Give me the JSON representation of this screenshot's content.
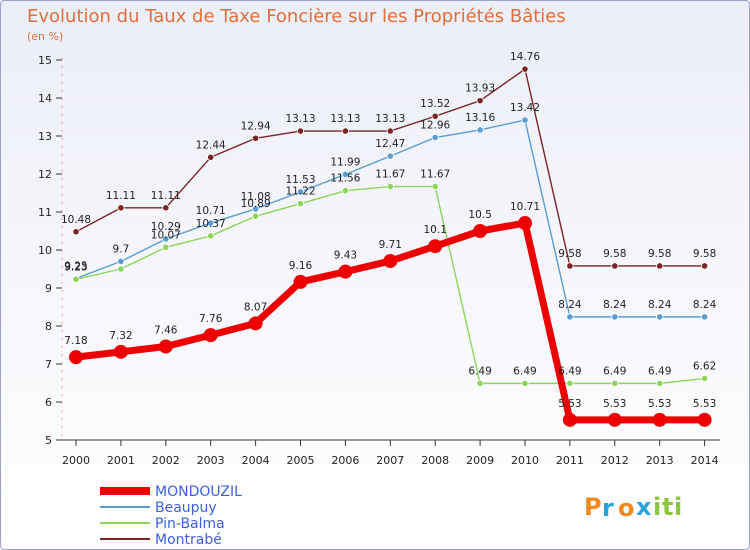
{
  "chart_data": {
    "type": "line",
    "title": "Evolution du Taux de Taxe Foncière sur les Propriétés Bâties",
    "subtitle": "(en %)",
    "xlabel": "",
    "ylabel": "",
    "categories": [
      "2000",
      "2001",
      "2002",
      "2003",
      "2004",
      "2005",
      "2006",
      "2007",
      "2008",
      "2009",
      "2010",
      "2011",
      "2012",
      "2013",
      "2014"
    ],
    "ylim": [
      5,
      15
    ],
    "yticks": [
      "5",
      "6",
      "7",
      "8",
      "9",
      "10",
      "11",
      "12",
      "13",
      "14",
      "15"
    ],
    "grid": false,
    "legend_position": "bottom-left",
    "series": [
      {
        "name": "Montrabé",
        "color": "#7a2424",
        "values": [
          10.48,
          11.11,
          11.11,
          12.44,
          12.94,
          13.13,
          13.13,
          13.13,
          13.52,
          13.93,
          14.76,
          9.58,
          9.58,
          9.58,
          9.58
        ],
        "labels": [
          "10.48",
          "11.11",
          "11.11",
          "12.44",
          "12.94",
          "13.13",
          "13.13",
          "13.13",
          "13.52",
          "13.93",
          "14.76",
          "9.58",
          "9.58",
          "9.58",
          "9.58"
        ]
      },
      {
        "name": "Beaupuy",
        "color": "#5a9bd1",
        "values": [
          9.25,
          9.7,
          10.29,
          10.71,
          11.08,
          11.53,
          11.99,
          12.47,
          12.96,
          13.16,
          13.42,
          8.24,
          8.24,
          8.24,
          8.24
        ],
        "labels": [
          "9.25",
          "9.7",
          "10.29",
          "10.71",
          "11.08",
          "11.53",
          "11.99",
          "12.47",
          "12.96",
          "13.16",
          "13.42",
          "8.24",
          "8.24",
          "8.24",
          "8.24"
        ]
      },
      {
        "name": "Pin-Balma",
        "color": "#8fd45a",
        "values": [
          9.23,
          9.5,
          10.07,
          10.37,
          10.89,
          11.22,
          11.56,
          11.67,
          11.67,
          6.49,
          6.49,
          6.49,
          6.49,
          6.49,
          6.62
        ],
        "labels": [
          "9.23",
          "",
          "10.07",
          "10.37",
          "10.89",
          "11.22",
          "11.56",
          "11.67",
          "11.67",
          "6.49",
          "6.49",
          "6.49",
          "6.49",
          "6.49",
          "6.62"
        ]
      },
      {
        "name": "MONDOUZIL",
        "color": "#ee0000",
        "values": [
          7.18,
          7.32,
          7.46,
          7.76,
          8.07,
          9.16,
          9.43,
          9.71,
          10.1,
          10.5,
          10.71,
          5.53,
          5.53,
          5.53,
          5.53
        ],
        "labels": [
          "7.18",
          "7.32",
          "7.46",
          "7.76",
          "8.07",
          "9.16",
          "9.43",
          "9.71",
          "10.1",
          "10.5",
          "10.71",
          "5.53",
          "5.53",
          "5.53",
          "5.53"
        ]
      }
    ],
    "legend": [
      {
        "name": "MONDOUZIL",
        "color": "#ee0000",
        "text_color": "#3f5fe0"
      },
      {
        "name": "Beaupuy",
        "color": "#5a9bd1",
        "text_color": "#3f5fe0"
      },
      {
        "name": "Pin-Balma",
        "color": "#8fd45a",
        "text_color": "#3f5fe0"
      },
      {
        "name": "Montrabé",
        "color": "#7a2424",
        "text_color": "#3f5fe0"
      }
    ]
  },
  "logo": {
    "text": "Proxiti",
    "letters": [
      {
        "ch": "P",
        "color": "#f08a1c"
      },
      {
        "ch": "r",
        "color": "#2aa3d8"
      },
      {
        "ch": "o",
        "color": "#f08a1c"
      },
      {
        "ch": "x",
        "color": "#2aa3d8"
      },
      {
        "ch": "i",
        "color": "#8cc63f"
      },
      {
        "ch": "t",
        "color": "#8cc63f"
      },
      {
        "ch": "i",
        "color": "#8cc63f"
      }
    ]
  }
}
